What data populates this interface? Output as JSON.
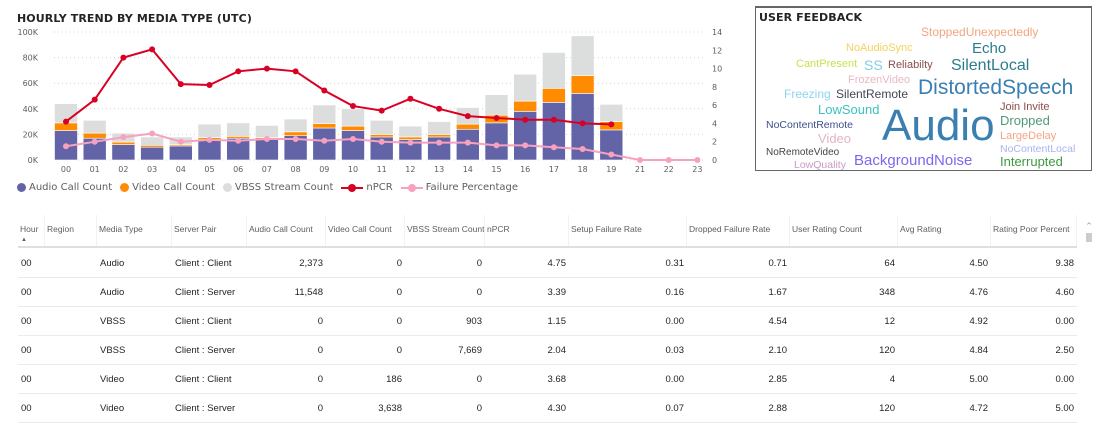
{
  "chart_title": "HOURLY TREND BY MEDIA TYPE (UTC)",
  "chart_data": {
    "type": "bar",
    "title": "HOURLY TREND BY MEDIA TYPE (UTC)",
    "categories": [
      "00",
      "01",
      "02",
      "03",
      "04",
      "05",
      "06",
      "07",
      "08",
      "09",
      "10",
      "11",
      "12",
      "13",
      "14",
      "15",
      "16",
      "17",
      "18",
      "19",
      "21",
      "22",
      "23"
    ],
    "left_axis": {
      "ticks": [
        "0K",
        "20K",
        "40K",
        "60K",
        "80K",
        "100K"
      ],
      "range": [
        0,
        100000
      ]
    },
    "right_axis": {
      "ticks": [
        "0",
        "2",
        "4",
        "6",
        "8",
        "10",
        "12",
        "14"
      ],
      "range": [
        0,
        14
      ]
    },
    "grid": true,
    "legend_position": "bottom-left",
    "series": [
      {
        "name": "Audio Call Count",
        "type": "stacked-bar",
        "axis": "left",
        "color": "#6264a7",
        "values": [
          23000,
          17000,
          12000,
          10000,
          11000,
          16000,
          17000,
          16000,
          19000,
          25000,
          23000,
          18000,
          16000,
          18000,
          24000,
          29000,
          38000,
          45000,
          52000,
          23500,
          null,
          null,
          null
        ]
      },
      {
        "name": "Video Call Count",
        "type": "stacked-bar",
        "axis": "left",
        "color": "#ff8c00",
        "values": [
          6000,
          4000,
          2000,
          1500,
          1000,
          1500,
          1500,
          1500,
          3000,
          3500,
          3500,
          2000,
          2000,
          2000,
          4000,
          6000,
          8000,
          11000,
          14000,
          6500,
          null,
          null,
          null
        ]
      },
      {
        "name": "VBSS Stream Count",
        "type": "stacked-bar",
        "axis": "left",
        "color": "#dcdedd",
        "values": [
          15000,
          10000,
          7000,
          6500,
          6000,
          10500,
          10500,
          9500,
          10000,
          14500,
          13500,
          11000,
          8500,
          10000,
          13000,
          16000,
          21000,
          28000,
          31000,
          13500,
          null,
          null,
          null
        ]
      },
      {
        "name": "nPCR",
        "type": "line",
        "axis": "right",
        "color": "#d90025",
        "values": [
          4.2,
          6.6,
          11.2,
          12.1,
          8.3,
          8.2,
          9.7,
          10.0,
          9.7,
          7.6,
          5.9,
          5.4,
          6.7,
          5.6,
          4.8,
          4.6,
          4.4,
          4.4,
          4.0,
          3.9,
          null,
          null,
          null
        ]
      },
      {
        "name": "Failure Percentage",
        "type": "line",
        "axis": "right",
        "color": "#f7a1bf",
        "values": [
          1.5,
          2.0,
          2.5,
          2.9,
          2.0,
          2.2,
          2.1,
          2.3,
          2.3,
          2.1,
          2.3,
          2.0,
          1.9,
          1.9,
          1.9,
          1.6,
          1.6,
          1.4,
          1.2,
          0.6,
          0,
          0,
          0
        ]
      }
    ]
  },
  "feedback": {
    "title": "USER FEEDBACK",
    "words": [
      {
        "text": "StoppedUnexpectedly",
        "color": "#f4a582"
      },
      {
        "text": "NoAudioSync",
        "color": "#f2d25c"
      },
      {
        "text": "Echo",
        "color": "#2a7d8c"
      },
      {
        "text": "CantPresent",
        "color": "#c6e34f"
      },
      {
        "text": "SS",
        "color": "#7ecfe8"
      },
      {
        "text": "Reliabilty",
        "color": "#8c4d4d"
      },
      {
        "text": "SilentLocal",
        "color": "#2a7d8c"
      },
      {
        "text": "FrozenVideo",
        "color": "#e8b9c0"
      },
      {
        "text": "DistortedSpeech",
        "color": "#3a7fb0"
      },
      {
        "text": "Freezing",
        "color": "#8fd3f0"
      },
      {
        "text": "SilentRemote",
        "color": "#444455"
      },
      {
        "text": "Join Invite",
        "color": "#8c4d4d"
      },
      {
        "text": "Dropped",
        "color": "#4e9a78"
      },
      {
        "text": "LowSound",
        "color": "#3ec2c0"
      },
      {
        "text": "Audio",
        "color": "#3a7fb0"
      },
      {
        "text": "NoContentRemote",
        "color": "#3f4f8c"
      },
      {
        "text": "LargeDelay",
        "color": "#f4a582"
      },
      {
        "text": "Video",
        "color": "#e0b8c0"
      },
      {
        "text": "NoRemoteVideo",
        "color": "#444444"
      },
      {
        "text": "BackgroundNoise",
        "color": "#7b68ee"
      },
      {
        "text": "LowQuality",
        "color": "#c79bc7"
      },
      {
        "text": "Interrupted",
        "color": "#3d9a3d"
      },
      {
        "text": "NoContentLocal",
        "color": "#a8b4f0"
      }
    ]
  },
  "table": {
    "columns": [
      "Hour",
      "Region",
      "Media Type",
      "Server Pair",
      "Audio Call Count",
      "Video Call Count",
      "VBSS Stream Count",
      "nPCR",
      "Setup Failure Rate",
      "Dropped Failure Rate",
      "User Rating Count",
      "Avg Rating",
      "Rating Poor Percent"
    ],
    "sort_column": "Hour",
    "rows": [
      [
        "00",
        "",
        "Audio",
        "Client : Client",
        "2,373",
        "0",
        "0",
        "4.75",
        "0.31",
        "0.71",
        "64",
        "4.50",
        "9.38"
      ],
      [
        "00",
        "",
        "Audio",
        "Client : Server",
        "11,548",
        "0",
        "0",
        "3.39",
        "0.16",
        "1.67",
        "348",
        "4.76",
        "4.60"
      ],
      [
        "00",
        "",
        "VBSS",
        "Client : Client",
        "0",
        "0",
        "903",
        "1.15",
        "0.00",
        "4.54",
        "12",
        "4.92",
        "0.00"
      ],
      [
        "00",
        "",
        "VBSS",
        "Client : Server",
        "0",
        "0",
        "7,669",
        "2.04",
        "0.03",
        "2.10",
        "120",
        "4.84",
        "2.50"
      ],
      [
        "00",
        "",
        "Video",
        "Client : Client",
        "0",
        "186",
        "0",
        "3.68",
        "0.00",
        "2.85",
        "4",
        "5.00",
        "0.00"
      ],
      [
        "00",
        "",
        "Video",
        "Client : Server",
        "0",
        "3,638",
        "0",
        "4.30",
        "0.07",
        "2.88",
        "120",
        "4.72",
        "5.00"
      ]
    ]
  }
}
